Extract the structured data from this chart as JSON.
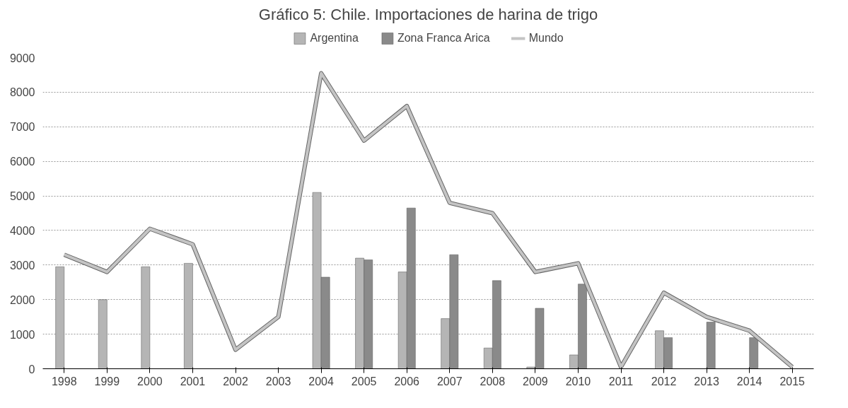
{
  "chart_data": {
    "type": "bar",
    "title": "Gráfico 5: Chile. Importaciones de harina de trigo",
    "categories": [
      "1998",
      "1999",
      "2000",
      "2001",
      "2002",
      "2003",
      "2004",
      "2005",
      "2006",
      "2007",
      "2008",
      "2009",
      "2010",
      "2011",
      "2012",
      "2013",
      "2014",
      "2015"
    ],
    "series": [
      {
        "name": "Argentina",
        "color": "#b5b5b5",
        "values": [
          2950,
          2000,
          2950,
          3050,
          null,
          null,
          5100,
          3200,
          2800,
          1450,
          600,
          50,
          400,
          null,
          1100,
          null,
          null,
          null
        ]
      },
      {
        "name": "Zona Franca Arica",
        "color": "#8a8a8a",
        "values": [
          null,
          null,
          null,
          null,
          null,
          null,
          2650,
          3150,
          4650,
          3300,
          2550,
          1750,
          2450,
          null,
          900,
          1350,
          900,
          null
        ]
      },
      {
        "name": "Mundo",
        "type": "line",
        "color": "#c4c4c4",
        "values": [
          3300,
          2800,
          4050,
          3600,
          550,
          1500,
          8550,
          6600,
          7600,
          4800,
          4500,
          2800,
          3050,
          50,
          2200,
          1500,
          1100,
          50
        ]
      }
    ],
    "ylim": [
      0,
      9000
    ],
    "yticks": [
      0,
      1000,
      2000,
      3000,
      4000,
      5000,
      6000,
      7000,
      8000,
      9000
    ],
    "grid": "y",
    "legend": "top",
    "line_style": "solid",
    "marker": "none"
  }
}
